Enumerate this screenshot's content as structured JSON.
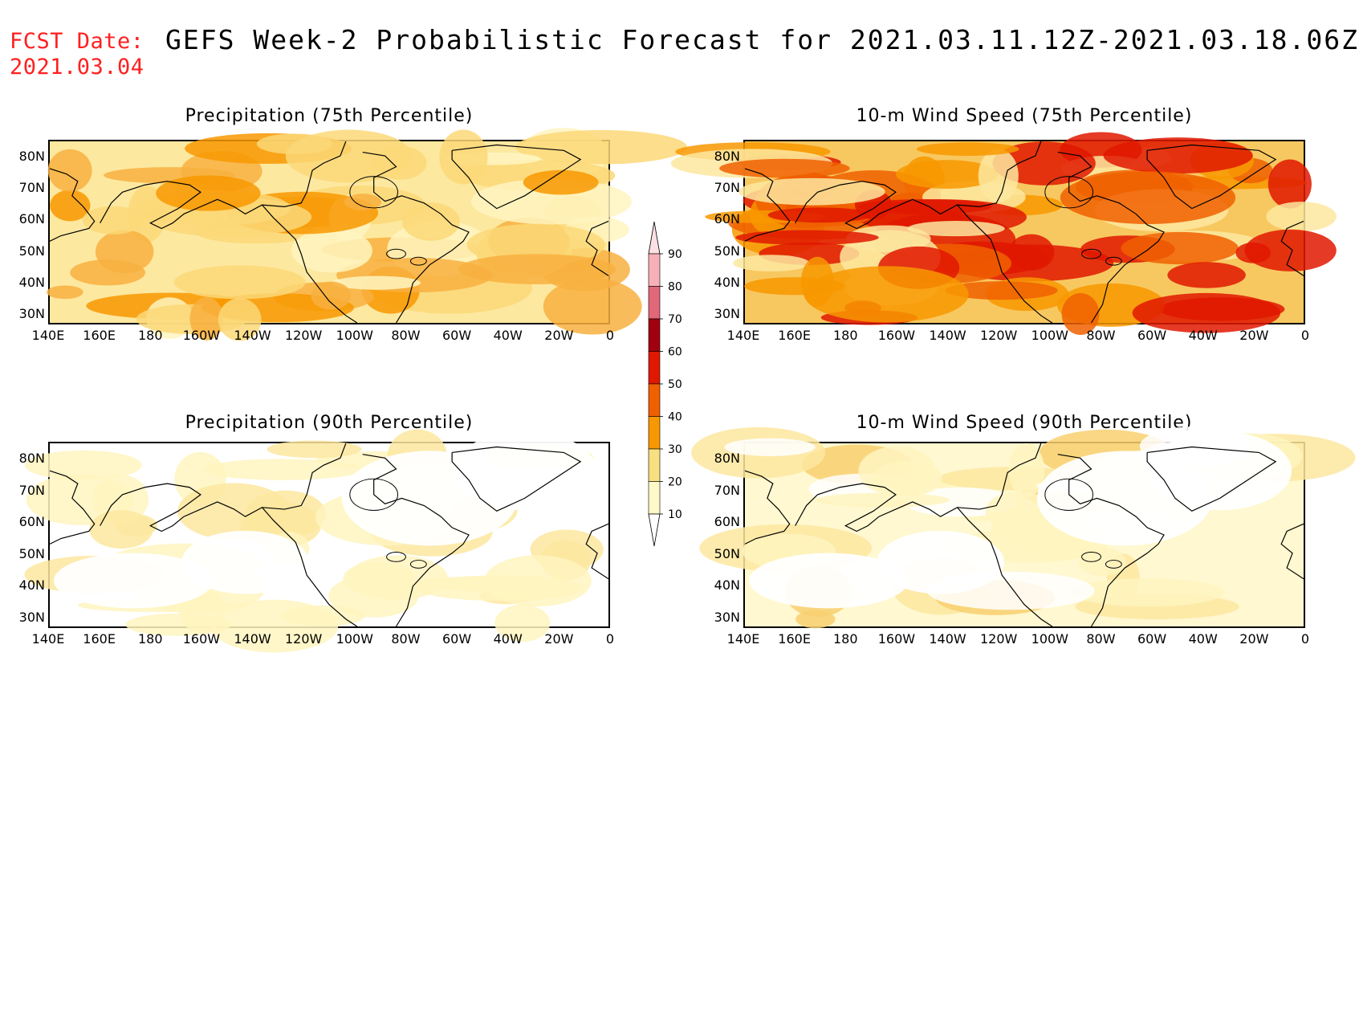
{
  "fcst_date": {
    "label": "FCST Date:",
    "value": "2021.03.04"
  },
  "title": "GEFS Week-2 Probabilistic Forecast for 2021.03.11.12Z-2021.03.18.06Z",
  "panels": [
    {
      "id": "precip-75",
      "title": "Precipitation (75th Percentile)",
      "lat_labels": [
        "80N",
        "70N",
        "60N",
        "50N",
        "40N",
        "30N"
      ],
      "lon_labels": [
        "140E",
        "160E",
        "180",
        "160W",
        "140W",
        "120W",
        "100W",
        "80W",
        "60W",
        "40W",
        "20W",
        "0"
      ],
      "intensity": "moderate"
    },
    {
      "id": "wind-75",
      "title": "10-m Wind Speed (75th Percentile)",
      "lat_labels": [
        "80N",
        "70N",
        "60N",
        "50N",
        "40N",
        "30N"
      ],
      "lon_labels": [
        "140E",
        "160E",
        "180",
        "160W",
        "140W",
        "120W",
        "100W",
        "80W",
        "60W",
        "40W",
        "20W",
        "0"
      ],
      "intensity": "high"
    },
    {
      "id": "precip-90",
      "title": "Precipitation (90th Percentile)",
      "lat_labels": [
        "80N",
        "70N",
        "60N",
        "50N",
        "40N",
        "30N"
      ],
      "lon_labels": [
        "140E",
        "160E",
        "180",
        "160W",
        "140W",
        "120W",
        "100W",
        "80W",
        "60W",
        "40W",
        "20W",
        "0"
      ],
      "intensity": "low"
    },
    {
      "id": "wind-90",
      "title": "10-m Wind Speed (90th Percentile)",
      "lat_labels": [
        "80N",
        "70N",
        "60N",
        "50N",
        "40N",
        "30N"
      ],
      "lon_labels": [
        "140E",
        "160E",
        "180",
        "160W",
        "140W",
        "120W",
        "100W",
        "80W",
        "60W",
        "40W",
        "20W",
        "0"
      ],
      "intensity": "low-med"
    }
  ],
  "colorbar": {
    "levels": [
      "90",
      "80",
      "70",
      "60",
      "50",
      "40",
      "30",
      "20",
      "10"
    ],
    "colors": [
      "#f7b0b8",
      "#e06878",
      "#a00010",
      "#e01800",
      "#f06000",
      "#f89800",
      "#f8e080",
      "#fff8c8"
    ]
  }
}
